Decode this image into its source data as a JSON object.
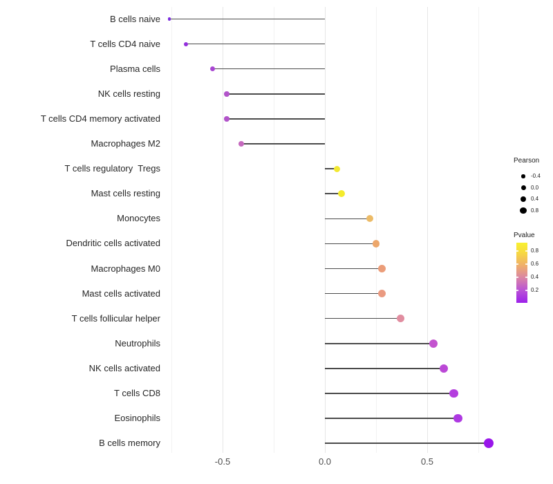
{
  "chart_data": {
    "type": "lollipop",
    "orientation": "horizontal",
    "title": "",
    "xlabel": "",
    "ylabel": "",
    "grid": "vertical-only",
    "legend_position": "right",
    "xlim": [
      -0.79,
      0.87
    ],
    "x_major_ticks": [
      {
        "value": -0.5,
        "label": "-0.5"
      },
      {
        "value": 0.0,
        "label": "0.0"
      },
      {
        "value": 0.5,
        "label": "0.5"
      }
    ],
    "x_minor_tick_values": [
      -0.75,
      -0.25,
      0.25,
      0.75
    ],
    "stem_color": "#4a4a4a",
    "categories": [
      "B cells naive",
      "T cells CD4 naive",
      "Plasma cells",
      "NK cells resting",
      "T cells CD4 memory activated",
      "Macrophages M2",
      "T cells regulatory  Tregs",
      "Mast cells resting",
      "Monocytes",
      "Dendritic cells activated",
      "Macrophages M0",
      "Mast cells activated",
      "T cells follicular helper",
      "Neutrophils",
      "NK cells activated",
      "T cells CD8",
      "Eosinophils",
      "B cells memory"
    ],
    "points": [
      {
        "label": "B cells naive",
        "pearson": -0.76,
        "dot_color": "#7b2ce0",
        "diameter": 4.5
      },
      {
        "label": "T cells CD4 naive",
        "pearson": -0.68,
        "dot_color": "#942fdd",
        "diameter": 6
      },
      {
        "label": "Plasma cells",
        "pearson": -0.55,
        "dot_color": "#a846d2",
        "diameter": 7
      },
      {
        "label": "NK cells resting",
        "pearson": -0.48,
        "dot_color": "#b254ca",
        "diameter": 7.5
      },
      {
        "label": "T cells CD4 memory activated",
        "pearson": -0.48,
        "dot_color": "#b254ca",
        "diameter": 7.5
      },
      {
        "label": "Macrophages M2",
        "pearson": -0.41,
        "dot_color": "#c569be",
        "diameter": 8
      },
      {
        "label": "T cells regulatory  Tregs",
        "pearson": 0.06,
        "dot_color": "#f2e832",
        "diameter": 9
      },
      {
        "label": "Mast cells resting",
        "pearson": 0.08,
        "dot_color": "#f4eb2c",
        "diameter": 10
      },
      {
        "label": "Monocytes",
        "pearson": 0.22,
        "dot_color": "#ecbb67",
        "diameter": 10
      },
      {
        "label": "Dendritic cells activated",
        "pearson": 0.25,
        "dot_color": "#eda76b",
        "diameter": 10.5
      },
      {
        "label": "Macrophages M0",
        "pearson": 0.28,
        "dot_color": "#eb9d79",
        "diameter": 11
      },
      {
        "label": "Mast cells activated",
        "pearson": 0.28,
        "dot_color": "#ea9a80",
        "diameter": 11
      },
      {
        "label": "T cells follicular helper",
        "pearson": 0.37,
        "dot_color": "#e18da0",
        "diameter": 11.5
      },
      {
        "label": "Neutrophils",
        "pearson": 0.53,
        "dot_color": "#c353cf",
        "diameter": 12
      },
      {
        "label": "NK cells activated",
        "pearson": 0.58,
        "dot_color": "#bb48d6",
        "diameter": 12
      },
      {
        "label": "T cells CD8",
        "pearson": 0.63,
        "dot_color": "#b43ede",
        "diameter": 12.5
      },
      {
        "label": "Eosinophils",
        "pearson": 0.65,
        "dot_color": "#ae39e2",
        "diameter": 12.5
      },
      {
        "label": "B cells memory",
        "pearson": 0.8,
        "dot_color": "#9916ea",
        "diameter": 14
      }
    ],
    "legend": {
      "size_legend": {
        "title": "Pearson",
        "items": [
          {
            "label": "-0.4",
            "diameter": 5.5
          },
          {
            "label": "0.0",
            "diameter": 7
          },
          {
            "label": "0.4",
            "diameter": 8
          },
          {
            "label": "0.8",
            "diameter": 9.5
          }
        ]
      },
      "color_legend": {
        "title": "Pvalue",
        "ticks": [
          "0.8",
          "0.6",
          "0.4",
          "0.2"
        ],
        "gradient_top_color": "#f8f130",
        "gradient_bottom_color": "#9c20ea",
        "colormap": "plasma"
      }
    }
  }
}
